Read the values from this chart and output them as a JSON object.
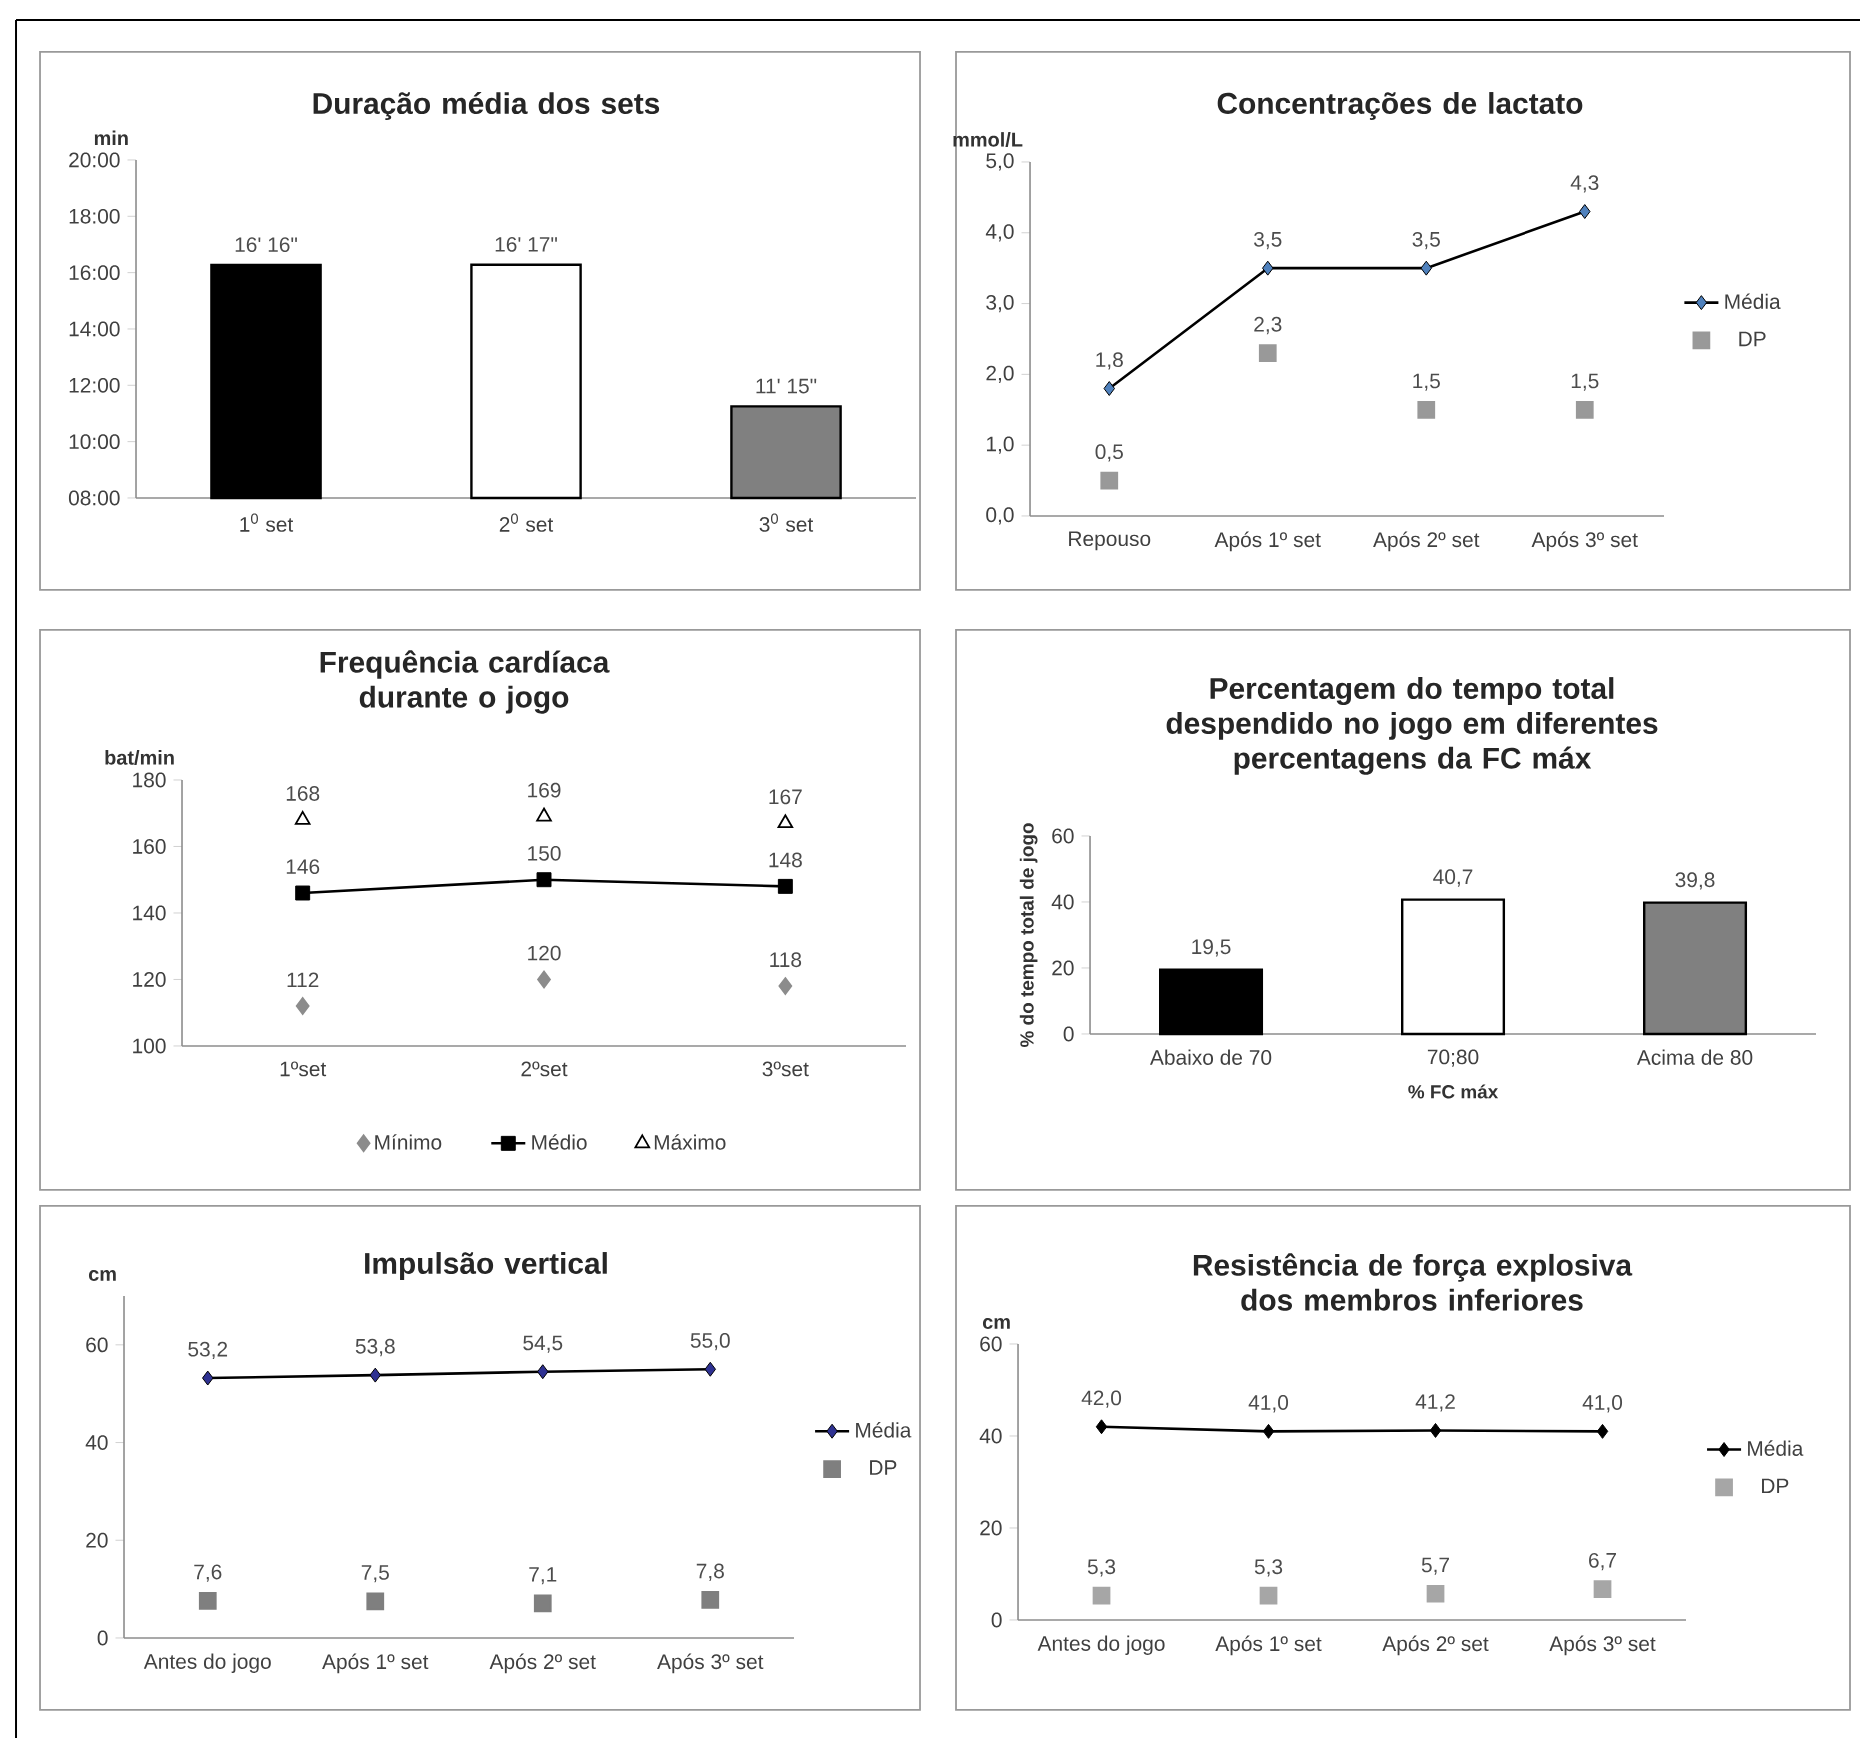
{
  "chart_data": [
    {
      "type": "bar",
      "title": "Duração média dos sets",
      "ylabel": "min",
      "categories": [
        "1$^{0}$ set",
        "2$^{0}$ set",
        "3$^{0}$ set"
      ],
      "values": [
        16.27,
        16.28,
        11.25
      ],
      "colors": [
        "#000000",
        "#ffffff",
        "#808080"
      ],
      "value_labels": [
        "16' 16\"",
        "16' 17\"",
        "11' 15\""
      ],
      "ylim": [
        8,
        20
      ],
      "yticks": [
        {
          "value": 8,
          "label": "08:00"
        },
        {
          "value": 10,
          "label": "10:00"
        },
        {
          "value": 12,
          "label": "12:00"
        },
        {
          "value": 14,
          "label": "14:00"
        },
        {
          "value": 16,
          "label": "16:00"
        },
        {
          "value": 18,
          "label": "18:00"
        },
        {
          "value": 20,
          "label": "20:00"
        }
      ]
    },
    {
      "type": "line",
      "title": "Concentrações de lactato",
      "ylabel": "mmol/L",
      "categories": [
        "Repouso",
        "Após 1º set",
        "Após 2º set",
        "Após 3º set"
      ],
      "series": [
        {
          "name": "Média",
          "type": "line",
          "color": "#4f81bd",
          "marker": "diamond",
          "values": [
            1.8,
            3.5,
            3.5,
            4.3
          ],
          "value_labels": [
            "1,8",
            "3,5",
            "3,5",
            "4,3"
          ]
        },
        {
          "name": "DP",
          "type": "scatter",
          "color": "#999999",
          "marker": "square",
          "values": [
            0.5,
            2.3,
            1.5,
            1.5
          ],
          "value_labels": [
            "0,5",
            "2,3",
            "1,5",
            "1,5"
          ]
        }
      ],
      "ylim": [
        0,
        5
      ],
      "yticks": [
        {
          "value": 0,
          "label": "0,0"
        },
        {
          "value": 1,
          "label": "1,0"
        },
        {
          "value": 2,
          "label": "2,0"
        },
        {
          "value": 3,
          "label": "3,0"
        },
        {
          "value": 4,
          "label": "4,0"
        },
        {
          "value": 5,
          "label": "5,0"
        }
      ],
      "legend": "right"
    },
    {
      "type": "line",
      "title": "Frequência cardíaca durante o jogo",
      "ylabel": "bat/min",
      "categories": [
        "1ºset",
        "2ºset",
        "3ºset"
      ],
      "series": [
        {
          "name": "Mínimo",
          "type": "scatter",
          "color": "#8c8c8c",
          "marker": "diamond",
          "values": [
            112,
            120,
            118
          ],
          "value_labels": [
            "112",
            "120",
            "118"
          ]
        },
        {
          "name": "Médio",
          "type": "line",
          "color": "#000000",
          "marker": "square",
          "values": [
            146,
            150,
            148
          ],
          "value_labels": [
            "146",
            "150",
            "148"
          ]
        },
        {
          "name": "Máximo",
          "type": "scatter",
          "color": "#000000",
          "marker": "triangle",
          "values": [
            168,
            169,
            167
          ],
          "value_labels": [
            "168",
            "169",
            "167"
          ]
        }
      ],
      "ylim": [
        100,
        180
      ],
      "yticks": [
        100,
        120,
        140,
        160,
        180
      ],
      "legend": "bottom"
    },
    {
      "type": "bar",
      "title": "Percentagem do tempo total despendido no jogo em diferentes percentagens da FC máx",
      "xlabel": "% FC máx",
      "ylabel": "% do tempo total de jogo",
      "categories": [
        "Abaixo de 70",
        "70;80",
        "Acima de 80"
      ],
      "values": [
        19.5,
        40.7,
        39.8
      ],
      "colors": [
        "#000000",
        "#ffffff",
        "#808080"
      ],
      "value_labels": [
        "19,5",
        "40,7",
        "39,8"
      ],
      "ylim": [
        0,
        60
      ],
      "yticks": [
        0,
        20,
        40,
        60
      ]
    },
    {
      "type": "line",
      "title": "Impulsão vertical",
      "ylabel": "cm",
      "categories": [
        "Antes do jogo",
        "Após 1º set",
        "Após 2º set",
        "Após 3º set"
      ],
      "series": [
        {
          "name": "Média",
          "type": "line",
          "color": "#2e3192",
          "marker": "diamond",
          "values": [
            53.2,
            53.8,
            54.5,
            55.0
          ],
          "value_labels": [
            "53,2",
            "53,8",
            "54,5",
            "55,0"
          ]
        },
        {
          "name": "DP",
          "type": "scatter",
          "color": "#7f7f7f",
          "marker": "square",
          "values": [
            7.6,
            7.5,
            7.1,
            7.8
          ],
          "value_labels": [
            "7,6",
            "7,5",
            "7,1",
            "7,8"
          ]
        }
      ],
      "ylim": [
        0,
        70
      ],
      "yticks": [
        0,
        20,
        40,
        60
      ],
      "legend": "right"
    },
    {
      "type": "line",
      "title": "Resistência de força explosiva dos membros inferiores",
      "ylabel": "cm",
      "categories": [
        "Antes do jogo",
        "Após 1º set",
        "Após 2º set",
        "Após 3º set"
      ],
      "series": [
        {
          "name": "Média",
          "type": "line",
          "color": "#000000",
          "marker": "diamond",
          "values": [
            42.0,
            41.0,
            41.2,
            41.0
          ],
          "value_labels": [
            "42,0",
            "41,0",
            "41,2",
            "41,0"
          ]
        },
        {
          "name": "DP",
          "type": "scatter",
          "color": "#a6a6a6",
          "marker": "square",
          "values": [
            5.3,
            5.3,
            5.7,
            6.7
          ],
          "value_labels": [
            "5,3",
            "5,3",
            "5,7",
            "6,7"
          ]
        }
      ],
      "ylim": [
        0,
        60
      ],
      "yticks": [
        0,
        20,
        40,
        60
      ],
      "legend": "right"
    }
  ]
}
